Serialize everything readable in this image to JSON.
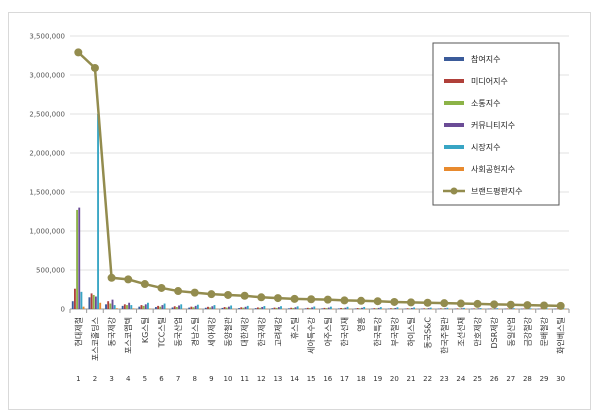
{
  "colors": {
    "참여지수": "#3b5b9a",
    "미디어지수": "#b0403a",
    "소통지수": "#8cb347",
    "커뮤니티지수": "#6b4c96",
    "시장지수": "#38a5c4",
    "사회공헌지수": "#e88a2e",
    "브랜드평판지수": "#938c4e"
  },
  "chart_data": {
    "type": "bar",
    "title": "",
    "xlabel": "",
    "ylabel": "",
    "ylim": [
      0,
      3500000
    ],
    "yticks": [
      "0",
      "500,000",
      "1,000,000",
      "1,500,000",
      "2,000,000",
      "2,500,000",
      "3,000,000",
      "3,500,000"
    ],
    "grid": true,
    "legend": "right",
    "categories": [
      "현대제철",
      "포스코홀딩스",
      "동국제강",
      "포스코엠텍",
      "KG스틸",
      "TCC스틸",
      "동국산업",
      "경남스틸",
      "세아제강",
      "동양철관",
      "대한제강",
      "한국제강",
      "고려제강",
      "휴스틸",
      "세아특수강",
      "아주스틸",
      "한국선재",
      "영흥",
      "한국특강",
      "부국철강",
      "하이스틸",
      "동국S&C",
      "한국주철관",
      "조선선재",
      "만호제강",
      "DSR제강",
      "동일산업",
      "금강철강",
      "문배철강",
      "화인베스틸"
    ],
    "indices": [
      "1",
      "2",
      "3",
      "4",
      "5",
      "6",
      "7",
      "8",
      "9",
      "10",
      "11",
      "12",
      "13",
      "14",
      "15",
      "16",
      "17",
      "18",
      "19",
      "20",
      "21",
      "22",
      "23",
      "24",
      "25",
      "26",
      "27",
      "28",
      "29",
      "30"
    ],
    "series": [
      {
        "name": "참여지수",
        "values": [
          100000,
          150000,
          60000,
          40000,
          30000,
          25000,
          20000,
          18000,
          16000,
          14000,
          12000,
          11000,
          10000,
          9000,
          8500,
          8000,
          7500,
          7000,
          6500,
          6000,
          5800,
          5500,
          5200,
          5000,
          4800,
          4600,
          4400,
          4200,
          4000,
          3800
        ]
      },
      {
        "name": "미디어지수",
        "values": [
          260000,
          200000,
          100000,
          60000,
          50000,
          40000,
          35000,
          30000,
          28000,
          25000,
          22000,
          20000,
          18000,
          16000,
          15000,
          14000,
          13000,
          12000,
          11000,
          10000,
          9500,
          9000,
          8500,
          8000,
          7500,
          7000,
          6800,
          6500,
          6200,
          6000
        ]
      },
      {
        "name": "소통지수",
        "values": [
          1270000,
          180000,
          70000,
          50000,
          40000,
          30000,
          25000,
          22000,
          20000,
          18000,
          16000,
          15000,
          14000,
          13000,
          12000,
          11000,
          10000,
          9500,
          9000,
          8500,
          8000,
          7500,
          7000,
          6500,
          6000,
          5500,
          5200,
          5000,
          4800,
          4500
        ]
      },
      {
        "name": "커뮤니티지수",
        "values": [
          1300000,
          160000,
          120000,
          80000,
          60000,
          50000,
          45000,
          40000,
          35000,
          30000,
          28000,
          26000,
          24000,
          22000,
          20000,
          18000,
          16000,
          15000,
          14000,
          13000,
          12000,
          11000,
          10000,
          9500,
          9000,
          8500,
          8000,
          7500,
          7000,
          6500
        ]
      },
      {
        "name": "시장지수",
        "values": [
          220000,
          2500000,
          50000,
          50000,
          80000,
          70000,
          60000,
          55000,
          50000,
          45000,
          40000,
          38000,
          36000,
          34000,
          32000,
          30000,
          28000,
          26000,
          24000,
          22000,
          20000,
          18000,
          16000,
          14000,
          12000,
          11000,
          10000,
          9000,
          8000,
          7000
        ]
      },
      {
        "name": "사회공헌지수",
        "values": [
          30000,
          80000,
          10000,
          8000,
          6000,
          5000,
          4500,
          4000,
          3800,
          3600,
          3400,
          3200,
          3000,
          2800,
          2600,
          2400,
          2200,
          2000,
          1900,
          1800,
          1700,
          1600,
          1500,
          1400,
          1300,
          1200,
          1100,
          1000,
          900,
          800
        ]
      },
      {
        "name": "브랜드평판지수",
        "type": "line",
        "values": [
          3290000,
          3090000,
          400000,
          380000,
          320000,
          270000,
          230000,
          210000,
          190000,
          180000,
          170000,
          150000,
          140000,
          130000,
          125000,
          120000,
          110000,
          105000,
          100000,
          90000,
          85000,
          80000,
          75000,
          70000,
          65000,
          60000,
          55000,
          50000,
          45000,
          40000
        ]
      }
    ]
  }
}
